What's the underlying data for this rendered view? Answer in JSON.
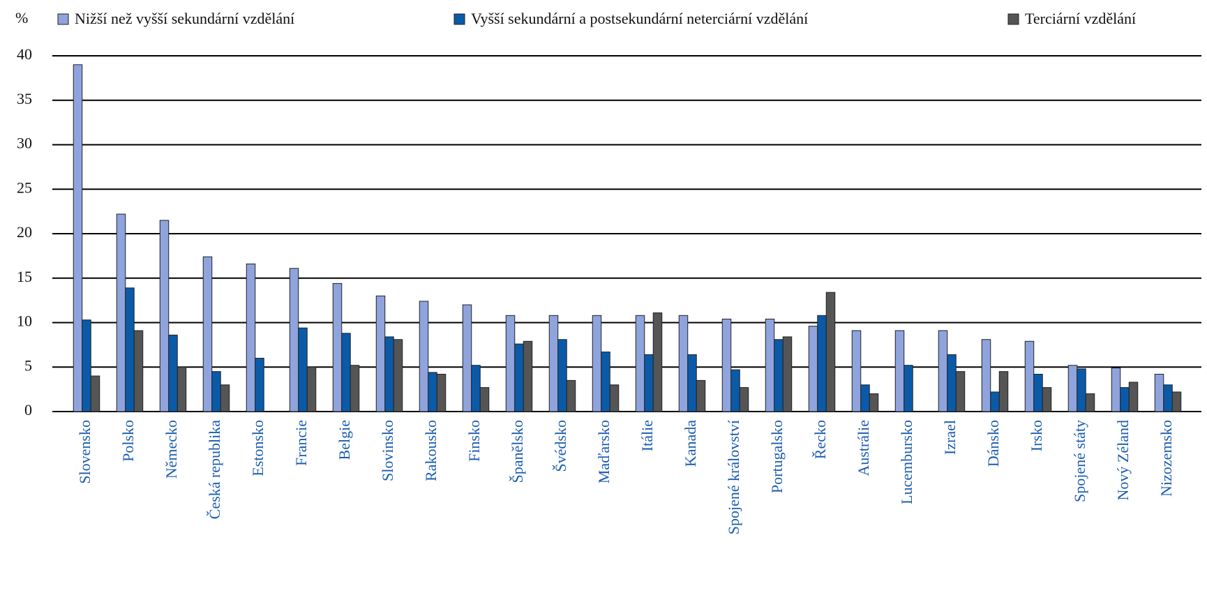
{
  "chart_data": {
    "type": "bar",
    "y_label": "%",
    "categories": [
      "Slovensko",
      "Polsko",
      "Německo",
      "Česká republika",
      "Estonsko",
      "Francie",
      "Belgie",
      "Slovinsko",
      "Rakousko",
      "Finsko",
      "Španělsko",
      "Švédsko",
      "Maďarsko",
      "Itálie",
      "Kanada",
      "Spojené království",
      "Portugalsko",
      "Řecko",
      "Austrálie",
      "Lucembursko",
      "Izrael",
      "Dánsko",
      "Irsko",
      "Spojené státy",
      "Nový Zéland",
      "Nizozemsko"
    ],
    "series": [
      {
        "name": "Nižší než vyšší sekundární vzdělání",
        "color": "#8fa3dd",
        "values": [
          39,
          22.2,
          21.5,
          17.4,
          16.6,
          16.1,
          14.4,
          13,
          12.4,
          12,
          10.8,
          10.8,
          10.8,
          10.8,
          10.8,
          10.4,
          10.4,
          9.6,
          9.1,
          9.1,
          9.1,
          8.1,
          7.9,
          5.2,
          4.9,
          4.2
        ]
      },
      {
        "name": "Vyšší sekundární a postsekundární neterciární vzdělání",
        "color": "#0b5aa8",
        "values": [
          10.3,
          13.9,
          8.6,
          4.5,
          6,
          9.4,
          8.8,
          8.4,
          4.4,
          5.2,
          7.6,
          8.1,
          6.7,
          6.4,
          6.4,
          4.7,
          8.1,
          10.8,
          3,
          5.2,
          6.4,
          2.2,
          4.2,
          4.8,
          2.7,
          3
        ]
      },
      {
        "name": "Terciární vzdělání",
        "color": "#555555",
        "values": [
          4,
          9.1,
          5,
          3,
          null,
          5,
          5.2,
          8.1,
          4.2,
          2.7,
          7.9,
          3.5,
          3,
          11.1,
          3.5,
          2.7,
          8.4,
          13.4,
          2,
          null,
          4.5,
          4.5,
          2.7,
          2,
          3.3,
          2.2
        ]
      }
    ],
    "ylim": [
      0,
      40
    ],
    "yticks": [
      0,
      5,
      10,
      15,
      20,
      25,
      30,
      35,
      40
    ],
    "grid": true
  }
}
